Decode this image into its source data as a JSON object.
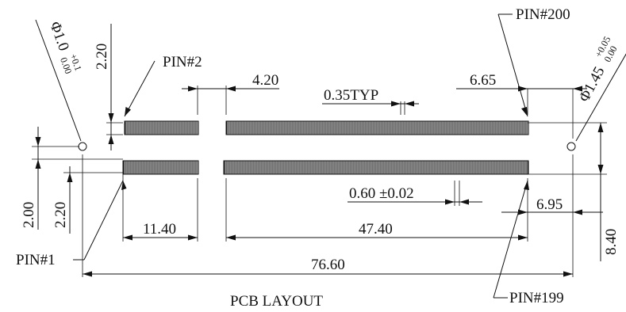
{
  "labels": {
    "pin2": "PIN#2",
    "pin200": "PIN#200",
    "pin1": "PIN#1",
    "pin199": "PIN#199",
    "caption": "PCB LAYOUT"
  },
  "dimensions": {
    "d_4_20": "4.20",
    "d_0_35": "0.35TYP",
    "d_6_65": "6.65",
    "d_0_60": "0.60 ±0.02",
    "d_6_95": "6.95",
    "d_11_40": "11.40",
    "d_47_40": "47.40",
    "d_76_60": "76.60",
    "d_8_40": "8.40",
    "d_2_20_top": "2.20",
    "d_2_00": "2.00",
    "d_2_20_left": "2.20",
    "hole_left": "Φ1.0",
    "hole_left_tol_plus": "+0.1",
    "hole_left_tol_minus": "0.00",
    "hole_right": "Φ1.45",
    "hole_right_tol_plus": "+0.05",
    "hole_right_tol_minus": "0.00"
  },
  "colors": {
    "ink": "#111111",
    "paper": "#ffffff"
  }
}
